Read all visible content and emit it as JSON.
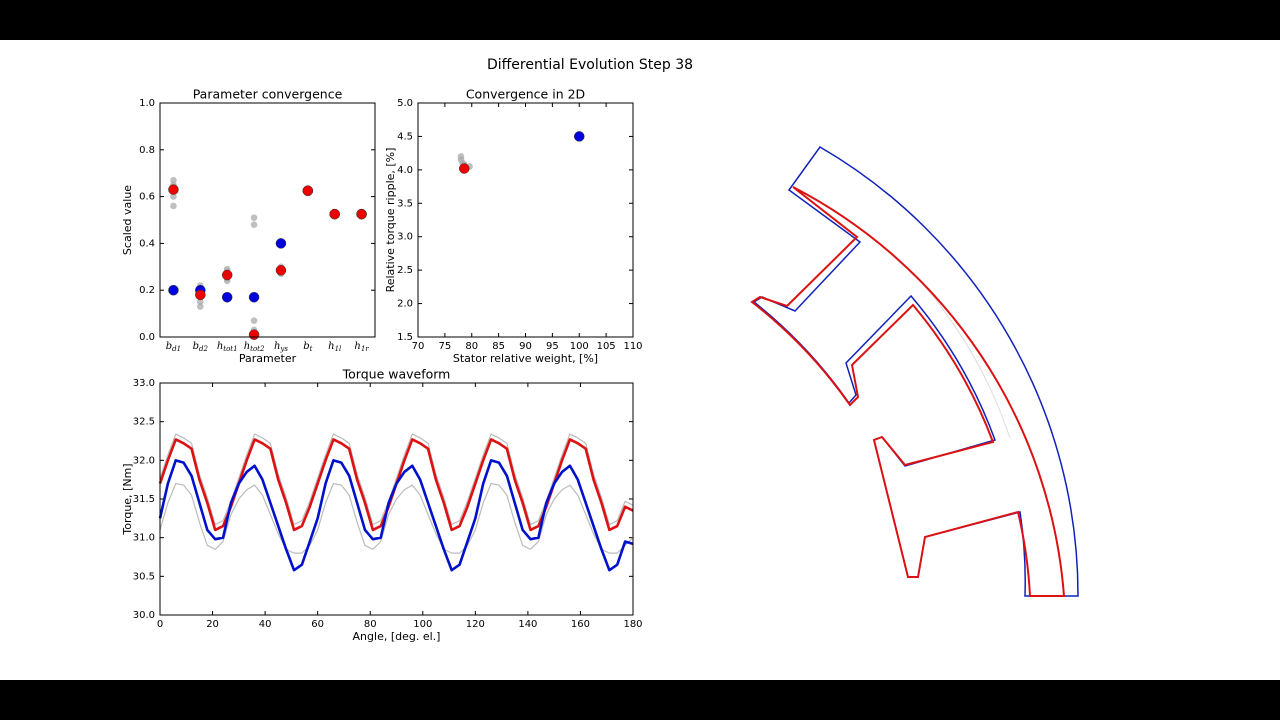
{
  "title": "Differential Evolution Step 38",
  "chart_data": [
    {
      "type": "scatter",
      "title": "Parameter convergence",
      "xlabel": "Parameter",
      "ylabel": "Scaled value",
      "categories": [
        "bd1",
        "bd2",
        "htot1",
        "htot2",
        "hys",
        "bt",
        "h1l",
        "h1r"
      ],
      "ylim": [
        0,
        1
      ],
      "yticks": [
        {
          "value": 0,
          "label": "0.0"
        },
        0.2,
        0.4,
        0.6,
        0.8,
        {
          "value": 1,
          "label": "1.0"
        }
      ],
      "series": [
        {
          "color": "#aaaaaa",
          "values": [
            0.67,
            0.22,
            0.29,
            0.51,
            0.3,
            null,
            null,
            null
          ]
        },
        {
          "color": "#aaaaaa",
          "values": [
            0.56,
            0.13,
            0.24,
            0.48,
            0.27,
            null,
            null,
            null
          ]
        },
        {
          "color": "#aaaaaa",
          "values": [
            0.6,
            0.15,
            0.28,
            0.07,
            0.29,
            null,
            null,
            null
          ]
        },
        {
          "color": "#aaaaaa",
          "values": [
            0.65,
            0.2,
            0.25,
            0.03,
            0.28,
            null,
            null,
            null
          ]
        },
        {
          "color": "#0000dd",
          "values": [
            0.2,
            0.2,
            0.17,
            0.17,
            0.4,
            0.625,
            0.525,
            0.525
          ]
        },
        {
          "color": "#ee0000",
          "values": [
            0.63,
            0.18,
            0.265,
            0.01,
            0.285,
            0.625,
            0.525,
            0.525
          ]
        }
      ]
    },
    {
      "type": "scatter",
      "title": "Convergence in 2D",
      "xlabel": "Stator relative weight, [%]",
      "ylabel": "Relative torque ripple, [%]",
      "xlim": [
        70,
        110
      ],
      "xticks": [
        70,
        75,
        80,
        85,
        90,
        95,
        100,
        105,
        110
      ],
      "ylim": [
        1.5,
        5
      ],
      "yticks": [
        1.5,
        {
          "value": 2,
          "label": "2.0"
        },
        2.5,
        {
          "value": 3,
          "label": "3.0"
        },
        3.5,
        {
          "value": 4,
          "label": "4.0"
        },
        4.5,
        {
          "value": 5,
          "label": "5.0"
        }
      ],
      "series": [
        {
          "color": "#aaaaaa",
          "x": [
            78,
            78,
            78.3,
            79.6,
            78.6
          ],
          "values": [
            4.2,
            4.15,
            4.1,
            4.05,
            4.08
          ]
        },
        {
          "color": "#0000dd",
          "x": [
            100
          ],
          "values": [
            4.5
          ]
        },
        {
          "color": "#ee0000",
          "x": [
            78.6
          ],
          "values": [
            4.02
          ]
        }
      ]
    },
    {
      "type": "line",
      "title": "Torque waveform",
      "xlabel": "Angle, [deg. el.]",
      "ylabel": "Torque, [Nm]",
      "xlim": [
        0,
        180
      ],
      "xticks": [
        0,
        20,
        40,
        60,
        80,
        100,
        120,
        140,
        160,
        180
      ],
      "ylim": [
        30,
        33
      ],
      "yticks": [
        {
          "value": 30,
          "label": "30.0"
        },
        30.5,
        {
          "value": 31,
          "label": "31.0"
        },
        31.5,
        {
          "value": 32,
          "label": "32.0"
        },
        32.5,
        {
          "value": 33,
          "label": "33.0"
        }
      ],
      "x": [
        0,
        3,
        6,
        9,
        12,
        15,
        18,
        21,
        24,
        27,
        30,
        33,
        36,
        39,
        42,
        45,
        48,
        51,
        54,
        57,
        60,
        63,
        66,
        69,
        72,
        75,
        78,
        81,
        84,
        87,
        90,
        93,
        96,
        99,
        102,
        105,
        108,
        111,
        114,
        117,
        120,
        123,
        126,
        129,
        132,
        135,
        138,
        141,
        144,
        147,
        150,
        153,
        156,
        159,
        162,
        165,
        168,
        171,
        174,
        177,
        180
      ],
      "series": [
        {
          "color": "#bbbbbb",
          "values": [
            31.77,
            32.07,
            32.34,
            32.29,
            32.22,
            31.82,
            31.52,
            31.17,
            31.22,
            31.47,
            31.77,
            32.07,
            32.34,
            32.29,
            32.22,
            31.82,
            31.52,
            31.17,
            31.22,
            31.47,
            31.77,
            32.07,
            32.34,
            32.29,
            32.22,
            31.82,
            31.52,
            31.17,
            31.22,
            31.47,
            31.77,
            32.07,
            32.34,
            32.29,
            32.22,
            31.82,
            31.52,
            31.17,
            31.22,
            31.47,
            31.77,
            32.07,
            32.34,
            32.29,
            32.22,
            31.82,
            31.52,
            31.17,
            31.22,
            31.47,
            31.77,
            32.07,
            32.34,
            32.29,
            32.22,
            31.82,
            31.52,
            31.17,
            31.22,
            31.47,
            31.42
          ]
        },
        {
          "color": "#bbbbbb",
          "values": [
            31.1,
            31.45,
            31.7,
            31.68,
            31.55,
            31.2,
            30.9,
            30.85,
            30.95,
            31.3,
            31.5,
            31.62,
            31.68,
            31.55,
            31.3,
            31.05,
            30.85,
            30.8,
            30.8,
            30.9,
            31.1,
            31.45,
            31.7,
            31.68,
            31.55,
            31.2,
            30.9,
            30.85,
            30.95,
            31.3,
            31.5,
            31.62,
            31.68,
            31.55,
            31.3,
            31.05,
            30.85,
            30.8,
            30.8,
            30.9,
            31.1,
            31.45,
            31.7,
            31.68,
            31.55,
            31.2,
            30.9,
            30.85,
            30.95,
            31.3,
            31.5,
            31.62,
            31.68,
            31.55,
            31.3,
            31.05,
            30.85,
            30.8,
            30.8,
            30.9,
            31.0
          ]
        },
        {
          "color": "#dd1111",
          "values": [
            31.7,
            32.0,
            32.27,
            32.22,
            32.15,
            31.75,
            31.45,
            31.1,
            31.15,
            31.4,
            31.7,
            32.0,
            32.27,
            32.22,
            32.15,
            31.75,
            31.45,
            31.1,
            31.15,
            31.4,
            31.7,
            32.0,
            32.27,
            32.22,
            32.15,
            31.75,
            31.45,
            31.1,
            31.15,
            31.4,
            31.7,
            32.0,
            32.27,
            32.22,
            32.15,
            31.75,
            31.45,
            31.1,
            31.15,
            31.4,
            31.7,
            32.0,
            32.27,
            32.22,
            32.15,
            31.75,
            31.45,
            31.1,
            31.15,
            31.4,
            31.7,
            32.0,
            32.27,
            32.22,
            32.15,
            31.75,
            31.45,
            31.1,
            31.15,
            31.4,
            31.35
          ]
        },
        {
          "color": "#0011cc",
          "values": [
            31.25,
            31.7,
            32.0,
            31.97,
            31.8,
            31.45,
            31.1,
            30.98,
            31.0,
            31.45,
            31.7,
            31.85,
            31.93,
            31.75,
            31.45,
            31.15,
            30.85,
            30.58,
            30.65,
            30.95,
            31.25,
            31.7,
            32.0,
            31.97,
            31.8,
            31.45,
            31.1,
            30.98,
            31.0,
            31.45,
            31.7,
            31.85,
            31.93,
            31.75,
            31.45,
            31.15,
            30.85,
            30.58,
            30.65,
            30.95,
            31.25,
            31.7,
            32.0,
            31.97,
            31.8,
            31.45,
            31.1,
            30.98,
            31.0,
            31.45,
            31.7,
            31.85,
            31.93,
            31.75,
            31.45,
            31.15,
            30.85,
            30.58,
            30.65,
            30.95,
            30.92
          ]
        }
      ]
    }
  ]
}
